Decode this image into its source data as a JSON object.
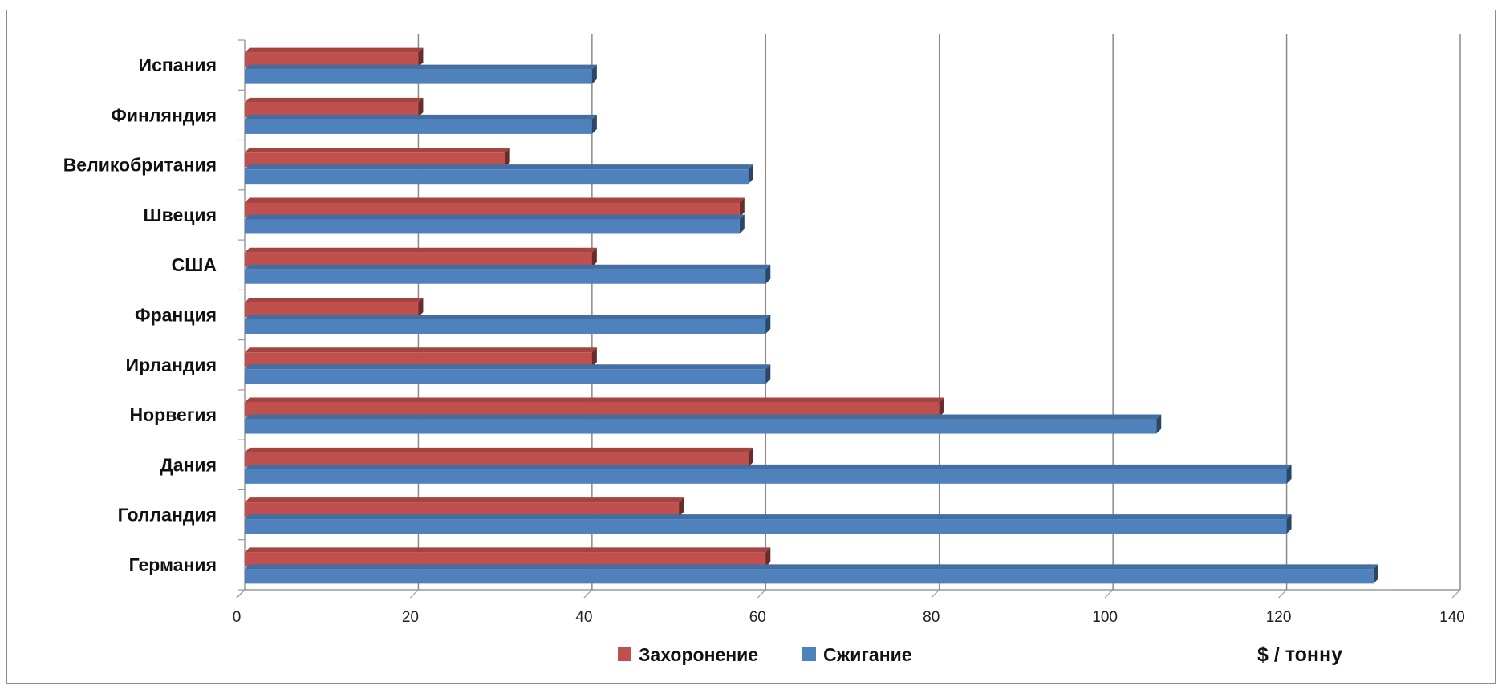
{
  "chart_data": {
    "type": "bar",
    "orientation": "horizontal",
    "categories": [
      "Германия",
      "Голландия",
      "Дания",
      "Норвегия",
      "Ирландия",
      "Франция",
      "США",
      "Швеция",
      "Великобритания",
      "Финляндия",
      "Испания"
    ],
    "series": [
      {
        "name": "Захоронение",
        "color": "#c0504d",
        "values": [
          60,
          50,
          58,
          80,
          40,
          20,
          40,
          57,
          30,
          20,
          20
        ]
      },
      {
        "name": "Сжигание",
        "color": "#4f81bd",
        "values": [
          130,
          120,
          120,
          105,
          60,
          60,
          60,
          57,
          58,
          40,
          40
        ]
      }
    ],
    "xlim": [
      0,
      140
    ],
    "xticks": [
      "0",
      "20",
      "40",
      "60",
      "80",
      "100",
      "120",
      "140"
    ],
    "unit_label": "$ / тонну",
    "legend_position": "bottom",
    "grid": "vertical",
    "style": "3d"
  }
}
